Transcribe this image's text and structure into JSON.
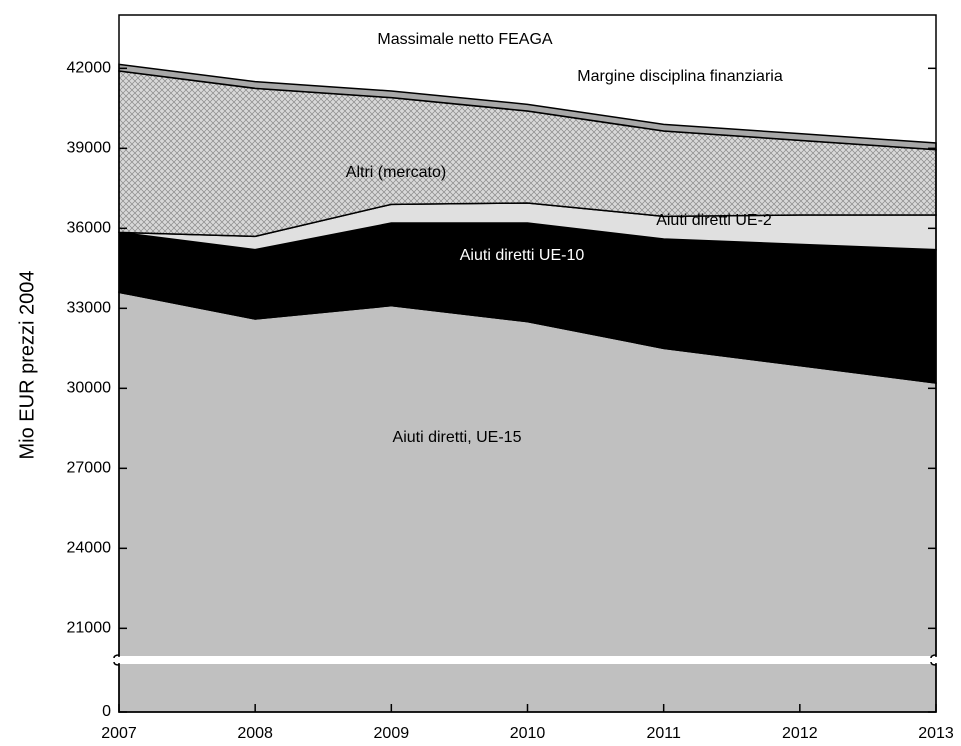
{
  "chart_data": {
    "type": "stacked_area",
    "y_label": "Mio EUR prezzi 2004",
    "x": [
      2007,
      2008,
      2009,
      2010,
      2011,
      2012,
      2013
    ],
    "xlim": [
      2007,
      2013
    ],
    "xticks": [
      2007,
      2008,
      2009,
      2010,
      2011,
      2012,
      2013
    ],
    "ylim": [
      0,
      44000
    ],
    "ybreak": [
      1800,
      20000
    ],
    "yticks": [
      0,
      21000,
      24000,
      27000,
      30000,
      33000,
      36000,
      39000,
      42000
    ],
    "annotations": [
      "Massimale netto FEAGA"
    ],
    "series": [
      {
        "name": "Aiuti diretti, UE-15",
        "color": "#c0c0c0",
        "values": [
          33600,
          32600,
          33100,
          32500,
          31500,
          30850,
          30200
        ]
      },
      {
        "name": "Aiuti diretti UE-10",
        "color": "#000000",
        "values": [
          2250,
          2600,
          3100,
          3700,
          4100,
          4550,
          5000
        ]
      },
      {
        "name": "Aiuti diretti UE-2",
        "color": "#e0e0e0",
        "values": [
          0,
          500,
          700,
          750,
          850,
          1100,
          1300
        ]
      },
      {
        "name": "Altri (mercato)",
        "color": "#c8c8c8",
        "values": [
          6050,
          5550,
          4000,
          3450,
          3200,
          2800,
          2450
        ]
      },
      {
        "name": "Margine disciplina finanziaria",
        "color": "#a8a8a8",
        "values": [
          250,
          250,
          250,
          250,
          250,
          250,
          250
        ]
      }
    ]
  }
}
